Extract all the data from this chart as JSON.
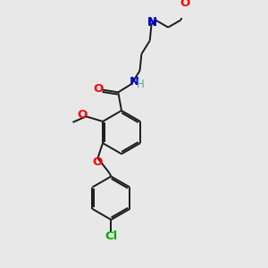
{
  "background_color": "#e8e8e8",
  "bond_color": "#1a1a1a",
  "atom_colors": {
    "O": "#ff0000",
    "N": "#0000cc",
    "Cl": "#00aa00",
    "H": "#5f9ea0"
  },
  "font_size": 8.5,
  "figsize": [
    3.0,
    3.0
  ],
  "dpi": 100,
  "lw": 1.4
}
